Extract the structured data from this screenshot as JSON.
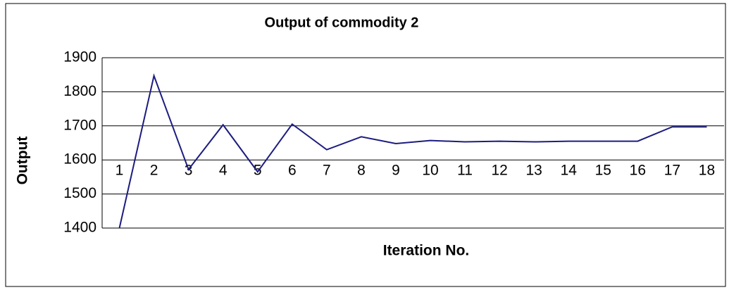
{
  "chart_data": {
    "type": "line",
    "title": "Output of commodity 2",
    "x_label": "Iteration No.",
    "y_label": "Output",
    "categories": [
      "1",
      "2",
      "3",
      "4",
      "5",
      "6",
      "7",
      "8",
      "9",
      "10",
      "11",
      "12",
      "13",
      "14",
      "15",
      "16",
      "17",
      "18"
    ],
    "series": [
      {
        "name": "Output",
        "color": "#1c1c80",
        "values": [
          1400,
          1847,
          1572,
          1703,
          1565,
          1705,
          1630,
          1668,
          1648,
          1657,
          1653,
          1655,
          1653,
          1655,
          1655,
          1655,
          1697,
          1697
        ]
      }
    ],
    "ylim": [
      1400,
      1900
    ],
    "yticks": [
      1400,
      1500,
      1600,
      1700,
      1800,
      1900
    ],
    "grid": true
  }
}
